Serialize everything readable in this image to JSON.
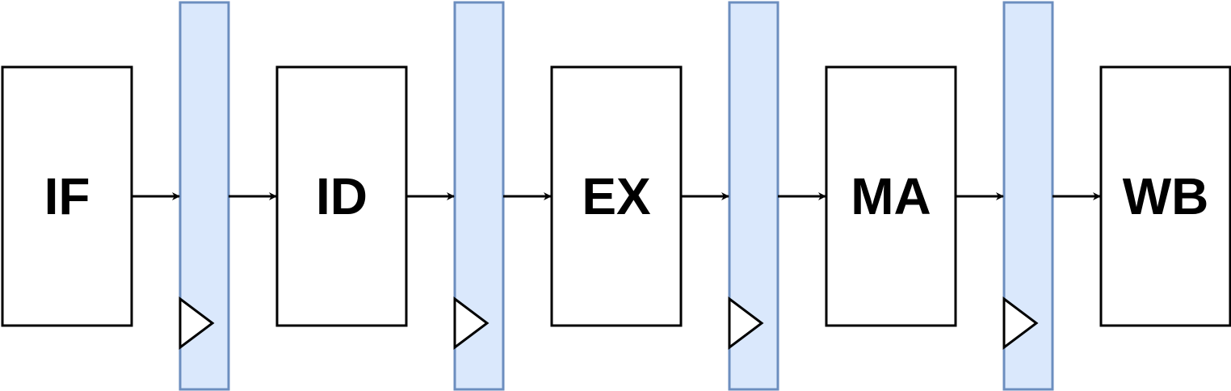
{
  "stages": [
    {
      "id": "if",
      "label": "IF"
    },
    {
      "id": "id",
      "label": "ID"
    },
    {
      "id": "ex",
      "label": "EX"
    },
    {
      "id": "ma",
      "label": "MA"
    },
    {
      "id": "wb",
      "label": "WB"
    }
  ],
  "colors": {
    "stage_fill": "#ffffff",
    "stage_stroke": "#000000",
    "register_fill": "#dae8fc",
    "register_stroke": "#6c8ebf",
    "arrow": "#000000"
  }
}
